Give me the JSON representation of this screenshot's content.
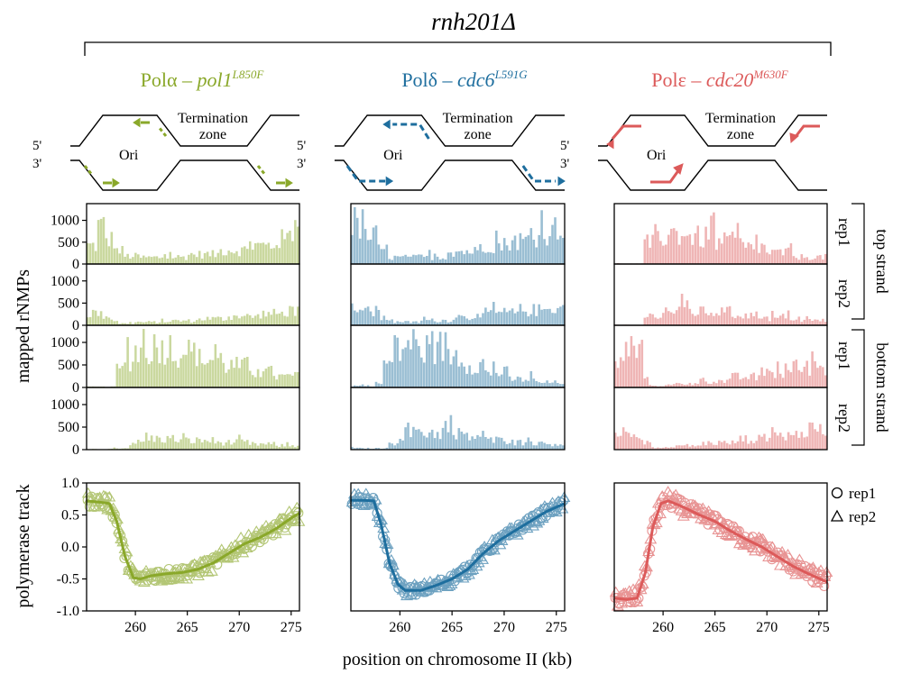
{
  "figure": {
    "title": "rnh201Δ",
    "xlabel": "position on chromosome II (kb)",
    "ylabel_top": "mapped rNMPs",
    "ylabel_bottom": "polymerase track",
    "strand_labels": {
      "top": "top strand",
      "bottom": "bottom strand"
    },
    "rep_labels": [
      "rep1",
      "rep2",
      "rep1",
      "rep2"
    ],
    "legend": [
      {
        "symbol": "circle",
        "label": "rep1"
      },
      {
        "symbol": "triangle",
        "label": "rep2"
      }
    ],
    "diagram_labels": {
      "ori": "Ori",
      "term1": "Termination",
      "term2": "zone",
      "five_prime": "5'",
      "three_prime": "3'"
    }
  },
  "panels": [
    {
      "name": "pola",
      "prefix": "Polα – ",
      "gene": "pol1",
      "allele": "L850F",
      "color": "#8aa82a"
    },
    {
      "name": "pold",
      "prefix": "Polδ – ",
      "gene": "cdc6",
      "allele": "L591G",
      "color": "#1e6e9e"
    },
    {
      "name": "pole",
      "prefix": "Polε – ",
      "gene": "cdc20",
      "allele": "M630F",
      "color": "#dc5a5a"
    }
  ],
  "chart_data": [
    {
      "type": "bar",
      "title": "mapped rNMPs per bin (top/bottom strand × rep1/rep2)",
      "x_range_kb": [
        255.3,
        275.8
      ],
      "yticks": [
        0,
        500,
        1000
      ],
      "ylim": [
        0,
        1300
      ],
      "panels": {
        "pola": {
          "top_rep1": [
            {
              "a": 255.3,
              "b": 256.2,
              "v": 420
            },
            {
              "a": 256.2,
              "b": 257.2,
              "v": 850
            },
            {
              "a": 257.2,
              "b": 258.2,
              "v": 550
            },
            {
              "a": 258.2,
              "b": 259.0,
              "v": 300
            },
            {
              "a": 259.0,
              "b": 260.5,
              "v": 180
            },
            {
              "a": 260.5,
              "b": 262.5,
              "v": 150
            },
            {
              "a": 262.5,
              "b": 265.0,
              "v": 160
            },
            {
              "a": 265.0,
              "b": 268.0,
              "v": 220
            },
            {
              "a": 268.0,
              "b": 271.0,
              "v": 320
            },
            {
              "a": 271.0,
              "b": 273.5,
              "v": 420
            },
            {
              "a": 273.5,
              "b": 274.8,
              "v": 560
            },
            {
              "a": 274.8,
              "b": 275.8,
              "v": 780
            }
          ],
          "top_rep2": [
            {
              "a": 255.3,
              "b": 256.5,
              "v": 280
            },
            {
              "a": 256.5,
              "b": 257.6,
              "v": 230
            },
            {
              "a": 257.6,
              "b": 258.4,
              "v": 120
            },
            {
              "a": 258.4,
              "b": 260.0,
              "v": 40
            },
            {
              "a": 260.0,
              "b": 263.0,
              "v": 70
            },
            {
              "a": 263.0,
              "b": 266.0,
              "v": 100
            },
            {
              "a": 266.0,
              "b": 269.0,
              "v": 150
            },
            {
              "a": 269.0,
              "b": 272.0,
              "v": 200
            },
            {
              "a": 272.0,
              "b": 274.5,
              "v": 260
            },
            {
              "a": 274.5,
              "b": 275.8,
              "v": 330
            }
          ],
          "bottom_rep1": [
            {
              "a": 255.3,
              "b": 258.0,
              "v": 15
            },
            {
              "a": 258.0,
              "b": 259.0,
              "v": 380
            },
            {
              "a": 259.0,
              "b": 260.0,
              "v": 620
            },
            {
              "a": 260.0,
              "b": 261.5,
              "v": 820
            },
            {
              "a": 261.5,
              "b": 263.5,
              "v": 900
            },
            {
              "a": 263.5,
              "b": 266.0,
              "v": 780
            },
            {
              "a": 266.0,
              "b": 268.5,
              "v": 620
            },
            {
              "a": 268.5,
              "b": 271.0,
              "v": 480
            },
            {
              "a": 271.0,
              "b": 273.5,
              "v": 340
            },
            {
              "a": 273.5,
              "b": 275.8,
              "v": 240
            }
          ],
          "bottom_rep2": [
            {
              "a": 255.3,
              "b": 257.8,
              "v": 10
            },
            {
              "a": 257.8,
              "b": 259.5,
              "v": 30
            },
            {
              "a": 259.5,
              "b": 261.0,
              "v": 160
            },
            {
              "a": 261.0,
              "b": 264.0,
              "v": 240
            },
            {
              "a": 264.0,
              "b": 267.5,
              "v": 200
            },
            {
              "a": 267.5,
              "b": 271.0,
              "v": 160
            },
            {
              "a": 271.0,
              "b": 273.5,
              "v": 120
            },
            {
              "a": 273.5,
              "b": 275.8,
              "v": 90
            }
          ]
        },
        "pold": {
          "top_rep1": [
            {
              "a": 255.3,
              "b": 256.5,
              "v": 900
            },
            {
              "a": 256.5,
              "b": 257.8,
              "v": 640
            },
            {
              "a": 257.8,
              "b": 259.0,
              "v": 330
            },
            {
              "a": 259.0,
              "b": 261.5,
              "v": 150
            },
            {
              "a": 261.5,
              "b": 264.5,
              "v": 160
            },
            {
              "a": 264.5,
              "b": 267.5,
              "v": 290
            },
            {
              "a": 267.5,
              "b": 270.5,
              "v": 440
            },
            {
              "a": 270.5,
              "b": 273.0,
              "v": 540
            },
            {
              "a": 273.0,
              "b": 274.8,
              "v": 680
            },
            {
              "a": 274.8,
              "b": 275.8,
              "v": 920
            }
          ],
          "top_rep2": [
            {
              "a": 255.3,
              "b": 256.7,
              "v": 360
            },
            {
              "a": 256.7,
              "b": 258.0,
              "v": 300
            },
            {
              "a": 258.0,
              "b": 259.5,
              "v": 150
            },
            {
              "a": 259.5,
              "b": 262.0,
              "v": 70
            },
            {
              "a": 262.0,
              "b": 265.0,
              "v": 110
            },
            {
              "a": 265.0,
              "b": 268.0,
              "v": 190
            },
            {
              "a": 268.0,
              "b": 271.5,
              "v": 280
            },
            {
              "a": 271.5,
              "b": 274.0,
              "v": 340
            },
            {
              "a": 274.0,
              "b": 275.8,
              "v": 380
            }
          ],
          "bottom_rep1": [
            {
              "a": 255.3,
              "b": 257.5,
              "v": 40
            },
            {
              "a": 257.5,
              "b": 258.5,
              "v": 90
            },
            {
              "a": 258.5,
              "b": 259.5,
              "v": 520
            },
            {
              "a": 259.5,
              "b": 260.5,
              "v": 800
            },
            {
              "a": 260.5,
              "b": 261.5,
              "v": 1000
            },
            {
              "a": 261.5,
              "b": 263.0,
              "v": 850
            },
            {
              "a": 263.0,
              "b": 264.5,
              "v": 900
            },
            {
              "a": 264.5,
              "b": 266.0,
              "v": 720
            },
            {
              "a": 266.0,
              "b": 268.0,
              "v": 520
            },
            {
              "a": 268.0,
              "b": 270.5,
              "v": 330
            },
            {
              "a": 270.5,
              "b": 273.0,
              "v": 180
            },
            {
              "a": 273.0,
              "b": 275.8,
              "v": 110
            }
          ],
          "bottom_rep2": [
            {
              "a": 255.3,
              "b": 259.0,
              "v": 30
            },
            {
              "a": 259.0,
              "b": 260.0,
              "v": 150
            },
            {
              "a": 260.0,
              "b": 262.0,
              "v": 360
            },
            {
              "a": 262.0,
              "b": 265.0,
              "v": 380
            },
            {
              "a": 265.0,
              "b": 268.0,
              "v": 290
            },
            {
              "a": 268.0,
              "b": 271.0,
              "v": 210
            },
            {
              "a": 271.0,
              "b": 273.5,
              "v": 160
            },
            {
              "a": 273.5,
              "b": 275.8,
              "v": 130
            }
          ]
        },
        "pole": {
          "top_rep1": [
            {
              "a": 255.3,
              "b": 258.0,
              "v": 10
            },
            {
              "a": 258.0,
              "b": 259.2,
              "v": 470
            },
            {
              "a": 259.2,
              "b": 260.5,
              "v": 640
            },
            {
              "a": 260.5,
              "b": 262.5,
              "v": 700
            },
            {
              "a": 262.5,
              "b": 265.0,
              "v": 610
            },
            {
              "a": 265.0,
              "b": 267.5,
              "v": 500
            },
            {
              "a": 267.5,
              "b": 270.0,
              "v": 380
            },
            {
              "a": 270.0,
              "b": 272.5,
              "v": 260
            },
            {
              "a": 272.5,
              "b": 275.8,
              "v": 160
            }
          ],
          "top_rep2": [
            {
              "a": 255.3,
              "b": 258.0,
              "v": 10
            },
            {
              "a": 258.0,
              "b": 260.0,
              "v": 210
            },
            {
              "a": 260.0,
              "b": 263.0,
              "v": 330
            },
            {
              "a": 263.0,
              "b": 266.5,
              "v": 300
            },
            {
              "a": 266.5,
              "b": 270.0,
              "v": 230
            },
            {
              "a": 270.0,
              "b": 273.0,
              "v": 160
            },
            {
              "a": 273.0,
              "b": 275.8,
              "v": 110
            }
          ],
          "bottom_rep1": [
            {
              "a": 255.3,
              "b": 256.3,
              "v": 520
            },
            {
              "a": 256.3,
              "b": 257.2,
              "v": 880
            },
            {
              "a": 257.2,
              "b": 258.0,
              "v": 760
            },
            {
              "a": 258.0,
              "b": 258.6,
              "v": 330
            },
            {
              "a": 258.6,
              "b": 261.0,
              "v": 40
            },
            {
              "a": 261.0,
              "b": 263.5,
              "v": 80
            },
            {
              "a": 263.5,
              "b": 266.5,
              "v": 140
            },
            {
              "a": 266.5,
              "b": 269.5,
              "v": 230
            },
            {
              "a": 269.5,
              "b": 272.5,
              "v": 320
            },
            {
              "a": 272.5,
              "b": 275.8,
              "v": 440
            }
          ],
          "bottom_rep2": [
            {
              "a": 255.3,
              "b": 256.5,
              "v": 380
            },
            {
              "a": 256.5,
              "b": 257.8,
              "v": 450
            },
            {
              "a": 257.8,
              "b": 258.8,
              "v": 200
            },
            {
              "a": 258.8,
              "b": 261.0,
              "v": 40
            },
            {
              "a": 261.0,
              "b": 264.0,
              "v": 90
            },
            {
              "a": 264.0,
              "b": 267.0,
              "v": 150
            },
            {
              "a": 267.0,
              "b": 270.0,
              "v": 230
            },
            {
              "a": 270.0,
              "b": 273.0,
              "v": 320
            },
            {
              "a": 273.0,
              "b": 275.8,
              "v": 420
            }
          ]
        }
      }
    },
    {
      "type": "scatter",
      "title": "polymerase track",
      "xlabel": "position on chromosome II (kb)",
      "ylabel": "polymerase track",
      "xlim": [
        255.3,
        275.8
      ],
      "ylim": [
        -1.0,
        1.0
      ],
      "xticks": [
        260,
        265,
        270,
        275
      ],
      "yticks": [
        -1.0,
        -0.5,
        0.0,
        0.5,
        1.0
      ],
      "series_markers": {
        "rep1": "circle",
        "rep2": "triangle"
      },
      "panels": {
        "pola": {
          "line": [
            [
              255.3,
              0.72
            ],
            [
              256.5,
              0.7
            ],
            [
              257.5,
              0.68
            ],
            [
              258.2,
              0.4
            ],
            [
              259.0,
              -0.15
            ],
            [
              259.8,
              -0.48
            ],
            [
              260.5,
              -0.5
            ],
            [
              261.5,
              -0.45
            ],
            [
              263.0,
              -0.42
            ],
            [
              264.5,
              -0.4
            ],
            [
              266.0,
              -0.35
            ],
            [
              267.5,
              -0.25
            ],
            [
              269.0,
              -0.1
            ],
            [
              270.5,
              0.05
            ],
            [
              272.0,
              0.15
            ],
            [
              273.5,
              0.28
            ],
            [
              275.0,
              0.45
            ],
            [
              275.8,
              0.53
            ]
          ],
          "rep1_noise": 0.09,
          "rep2_noise": 0.13
        },
        "pold": {
          "line": [
            [
              255.3,
              0.73
            ],
            [
              256.5,
              0.73
            ],
            [
              257.5,
              0.72
            ],
            [
              258.2,
              0.35
            ],
            [
              259.0,
              -0.25
            ],
            [
              259.8,
              -0.58
            ],
            [
              260.5,
              -0.68
            ],
            [
              262.0,
              -0.68
            ],
            [
              263.5,
              -0.6
            ],
            [
              265.0,
              -0.5
            ],
            [
              266.5,
              -0.35
            ],
            [
              268.0,
              -0.1
            ],
            [
              269.5,
              0.1
            ],
            [
              271.0,
              0.25
            ],
            [
              272.5,
              0.4
            ],
            [
              274.0,
              0.55
            ],
            [
              275.8,
              0.68
            ]
          ],
          "rep1_noise": 0.07,
          "rep2_noise": 0.1
        },
        "pole": {
          "line": [
            [
              255.3,
              -0.8
            ],
            [
              256.5,
              -0.82
            ],
            [
              257.5,
              -0.8
            ],
            [
              258.3,
              -0.4
            ],
            [
              259.0,
              0.3
            ],
            [
              259.8,
              0.68
            ],
            [
              260.5,
              0.72
            ],
            [
              262.0,
              0.62
            ],
            [
              263.5,
              0.5
            ],
            [
              265.0,
              0.4
            ],
            [
              266.5,
              0.25
            ],
            [
              268.0,
              0.12
            ],
            [
              269.5,
              0.0
            ],
            [
              271.0,
              -0.15
            ],
            [
              272.5,
              -0.3
            ],
            [
              274.0,
              -0.42
            ],
            [
              275.8,
              -0.55
            ]
          ],
          "rep1_noise": 0.1,
          "rep2_noise": 0.15
        }
      }
    }
  ]
}
